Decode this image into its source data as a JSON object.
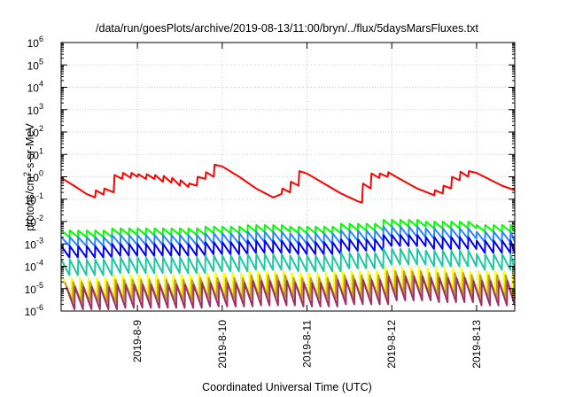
{
  "chart_data": {
    "type": "line",
    "title": "/data/run/goesPlots/archive/2019-08-13/11:00/bryn/../flux/5daysMarsFluxes.txt",
    "xlabel": "Coordinated Universal Time (UTC)",
    "ylabel": "protons/cm²-s-sr-MeV",
    "ylabel_parts": {
      "before": "protons/cm",
      "sup": "2",
      "after": "-s-sr-MeV"
    },
    "yscale": "log",
    "ylim_exp": [
      -6,
      6
    ],
    "xlim": [
      8.1,
      13.45
    ],
    "grid": true,
    "y_tick_exponents": [
      -6,
      -5,
      -4,
      -3,
      -2,
      -1,
      0,
      1,
      2,
      3,
      4,
      5,
      6
    ],
    "y_tick_base": "10",
    "x_ticks": [
      {
        "value": 9,
        "label": "2019-8-9"
      },
      {
        "value": 10,
        "label": "2019-8-10"
      },
      {
        "value": 11,
        "label": "2019-8-11"
      },
      {
        "value": 12,
        "label": "2019-8-12"
      },
      {
        "value": 13,
        "label": "2019-8-13"
      }
    ],
    "series": [
      {
        "color": "#ff0000",
        "x": [
          8.1,
          8.25,
          8.4,
          8.5,
          8.51,
          8.6,
          8.61,
          8.72,
          8.73,
          8.82,
          8.83,
          8.92,
          8.93,
          9.0,
          9.01,
          9.1,
          9.11,
          9.2,
          9.21,
          9.3,
          9.31,
          9.4,
          9.41,
          9.5,
          9.51,
          9.6,
          9.61,
          9.7,
          9.71,
          9.8,
          9.81,
          9.9,
          9.91,
          10.0,
          10.2,
          10.4,
          10.6,
          10.7,
          10.71,
          10.8,
          10.81,
          10.9,
          10.91,
          11.0,
          11.2,
          11.4,
          11.6,
          11.65,
          11.66,
          11.75,
          11.76,
          11.85,
          11.86,
          11.95,
          11.96,
          12.05,
          12.3,
          12.5,
          12.51,
          12.6,
          12.61,
          12.7,
          12.71,
          12.8,
          12.81,
          12.9,
          12.91,
          13.0,
          13.3,
          13.45
        ],
        "y": [
          0.9,
          0.4,
          0.17,
          0.12,
          0.25,
          0.16,
          0.3,
          0.2,
          1.2,
          0.8,
          1.5,
          0.9,
          1.5,
          1.0,
          1.3,
          0.8,
          1.3,
          0.8,
          1.2,
          0.6,
          1.1,
          0.55,
          0.9,
          0.4,
          0.7,
          0.35,
          0.5,
          0.4,
          1.0,
          0.8,
          1.6,
          1.0,
          3.5,
          2.9,
          1.0,
          0.3,
          0.12,
          0.17,
          0.3,
          0.2,
          0.6,
          0.4,
          1.8,
          1.4,
          0.5,
          0.18,
          0.08,
          0.07,
          0.5,
          0.3,
          1.4,
          0.9,
          1.4,
          1.0,
          1.6,
          1.0,
          0.3,
          0.15,
          0.25,
          0.18,
          0.4,
          0.3,
          1.0,
          0.7,
          1.7,
          1.0,
          1.8,
          1.5,
          0.4,
          0.25
        ]
      },
      {
        "color": "#00ff00",
        "sawtooth": {
          "start": 8.1,
          "end": 13.45,
          "period": 0.1,
          "peak": [
            0.004,
            0.005,
            0.005,
            0.006,
            0.007,
            0.006,
            0.008,
            0.012,
            0.01,
            0.007
          ],
          "trough": [
            0.002,
            0.0025,
            0.0025,
            0.003,
            0.0035,
            0.003,
            0.004,
            0.006,
            0.005,
            0.0035
          ]
        }
      },
      {
        "color": "#2a87ff",
        "sawtooth": {
          "start": 8.1,
          "end": 13.45,
          "period": 0.1,
          "peak": [
            0.002,
            0.0025,
            0.0025,
            0.003,
            0.0035,
            0.003,
            0.004,
            0.006,
            0.005,
            0.0035
          ],
          "trough": [
            0.0008,
            0.0009,
            0.0009,
            0.001,
            0.0012,
            0.001,
            0.0014,
            0.002,
            0.0017,
            0.0012
          ]
        }
      },
      {
        "color": "#0000ff",
        "sawtooth": {
          "start": 8.1,
          "end": 13.45,
          "period": 0.1,
          "peak": [
            0.0008,
            0.001,
            0.001,
            0.0012,
            0.0014,
            0.0012,
            0.0016,
            0.0025,
            0.002,
            0.0014
          ],
          "trough": [
            0.00025,
            0.0003,
            0.0003,
            0.00035,
            0.0004,
            0.00035,
            0.0005,
            0.0008,
            0.0006,
            0.0004
          ]
        }
      },
      {
        "color": "#1ec8a0",
        "sawtooth": {
          "start": 8.1,
          "end": 13.45,
          "period": 0.1,
          "peak": [
            0.0002,
            0.00025,
            0.00025,
            0.0003,
            0.00035,
            0.0003,
            0.0004,
            0.0006,
            0.0005,
            0.00035
          ],
          "trough": [
            4e-05,
            5e-05,
            5e-05,
            6e-05,
            7e-05,
            6e-05,
            8e-05,
            0.00012,
            0.0001,
            7e-05
          ]
        }
      },
      {
        "color": "#ffff00",
        "sawtooth": {
          "start": 8.12,
          "end": 13.45,
          "period": 0.1,
          "peak": [
            3e-05,
            4e-05,
            4e-05,
            5e-05,
            6e-05,
            5e-05,
            6e-05,
            9e-05,
            8e-05,
            6e-05
          ],
          "trough": [
            4e-06,
            4.5e-06,
            4.5e-06,
            5e-06,
            6e-06,
            5e-06,
            6e-06,
            8e-06,
            7e-06,
            5e-06
          ]
        }
      },
      {
        "color": "#bca020",
        "sawtooth": {
          "start": 8.14,
          "end": 13.45,
          "period": 0.1,
          "peak": [
            2e-05,
            2.5e-05,
            2.5e-05,
            3e-05,
            4e-05,
            3e-05,
            4e-05,
            6e-05,
            5e-05,
            4e-05
          ],
          "trough": [
            2.5e-06,
            3e-06,
            3e-06,
            3.5e-06,
            4e-06,
            3.5e-06,
            4e-06,
            6e-06,
            5e-06,
            3.5e-06
          ]
        }
      },
      {
        "color": "#a0306a",
        "sawtooth": {
          "start": 8.16,
          "end": 13.45,
          "period": 0.1,
          "peak": [
            1.2e-05,
            1.5e-05,
            1.5e-05,
            1.8e-05,
            2.2e-05,
            1.8e-05,
            2.4e-05,
            3.5e-05,
            3e-05,
            2.2e-05
          ],
          "trough": [
            1.2e-06,
            1.4e-06,
            1.4e-06,
            1.6e-06,
            1.8e-06,
            1.6e-06,
            2e-06,
            3e-06,
            2.5e-06,
            1.8e-06
          ]
        }
      }
    ]
  }
}
